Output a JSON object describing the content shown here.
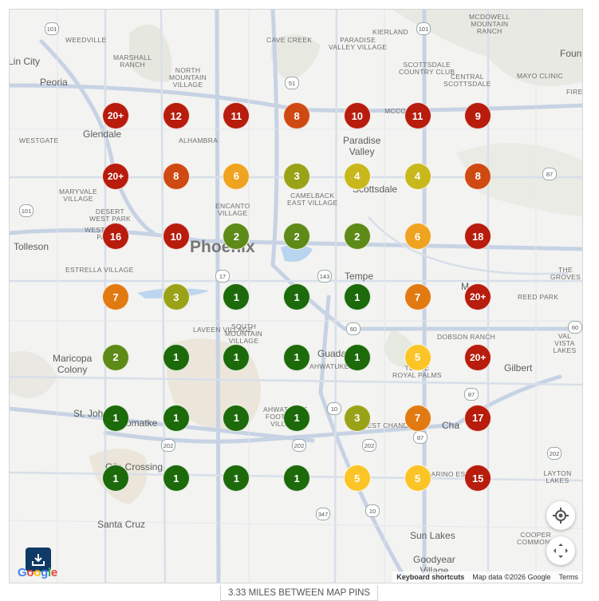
{
  "map": {
    "places": [
      "WEEDVILLE",
      "MARSHALL\nRANCH",
      "NORTH\nMOUNTAIN\nVILLAGE",
      "CAVE CREEK",
      "PARADISE\nVALLEY VILLAGE",
      "KIERLAND",
      "SCOTTSDALE\nCOUNTRY CLUB",
      "MCDOWELL\nMOUNTAIN\nRANCH",
      "CENTRAL\nSCOTTSDALE",
      "MAYO CLINIC",
      "FIRERO",
      "WESTGATE",
      "ALHAMBRA",
      "MARYVALE\nVILLAGE",
      "DESERT\nWEST PARK",
      "ENCANTO\nVILLAGE",
      "CAMELBACK\nEAST VILLAGE",
      "WESTRIDGE\nPARK",
      "ESTRELLA VILLAGE",
      "THE GROVES",
      "REED PARK",
      "LAVEEN VILLAGE",
      "SOUTH\nMOUNTAIN\nVILLAGE",
      "DOBSON RANCH",
      "VAL VISTA\nLAKES",
      "TEMPE\nROYAL PALMS",
      "AHWATUKEE",
      "AHWATUKEE\nFOOTHILLS\nVILLAGE",
      "WEST CHANDLER",
      "LAYTON LAKES",
      "COOPER\nCOMMONS",
      "MCCO",
      "SAN MARINO ESTATES"
    ],
    "cities": [
      "Lin City",
      "Peoria",
      "Glendale",
      "Paradise\nValley",
      "Scottsdale",
      "Fount",
      "Tolleson",
      "Tempe",
      "Maricopa\nColony",
      "Gilbert",
      "St. Johns",
      "Komatke",
      "Gila Crossing",
      "Cha",
      "Santa Cruz",
      "Sun Lakes",
      "Goodyear\nVillage",
      "Guada",
      "M"
    ],
    "big_city": "Phoenix",
    "route_shields": [
      "101",
      "101",
      "51",
      "17",
      "87",
      "143",
      "60",
      "60",
      "10",
      "202",
      "202",
      "202",
      "87",
      "347",
      "10",
      "87",
      "202",
      "101"
    ]
  },
  "pins": {
    "colors": {
      "red": "#b71c0c",
      "red_orange": "#cf4a12",
      "orange": "#e27a12",
      "amber": "#f0a320",
      "yellow": "#fbc528",
      "mustard": "#c9b81c",
      "olive": "#9aa218",
      "green_olive": "#5e8a18",
      "green": "#1c6a0a"
    },
    "rows": [
      [
        {
          "label": "20+",
          "color": "red"
        },
        {
          "label": "12",
          "color": "red"
        },
        {
          "label": "11",
          "color": "red"
        },
        {
          "label": "8",
          "color": "red_orange"
        },
        {
          "label": "10",
          "color": "red"
        },
        {
          "label": "11",
          "color": "red"
        },
        {
          "label": "9",
          "color": "red"
        }
      ],
      [
        {
          "label": "20+",
          "color": "red"
        },
        {
          "label": "8",
          "color": "red_orange"
        },
        {
          "label": "6",
          "color": "amber"
        },
        {
          "label": "3",
          "color": "olive"
        },
        {
          "label": "4",
          "color": "mustard"
        },
        {
          "label": "4",
          "color": "mustard"
        },
        {
          "label": "8",
          "color": "red_orange"
        }
      ],
      [
        {
          "label": "16",
          "color": "red"
        },
        {
          "label": "10",
          "color": "red"
        },
        {
          "label": "2",
          "color": "green_olive"
        },
        {
          "label": "2",
          "color": "green_olive"
        },
        {
          "label": "2",
          "color": "green_olive"
        },
        {
          "label": "6",
          "color": "amber"
        },
        {
          "label": "18",
          "color": "red"
        }
      ],
      [
        {
          "label": "7",
          "color": "orange"
        },
        {
          "label": "3",
          "color": "olive"
        },
        {
          "label": "1",
          "color": "green"
        },
        {
          "label": "1",
          "color": "green"
        },
        {
          "label": "1",
          "color": "green"
        },
        {
          "label": "7",
          "color": "orange"
        },
        {
          "label": "20+",
          "color": "red"
        }
      ],
      [
        {
          "label": "2",
          "color": "green_olive"
        },
        {
          "label": "1",
          "color": "green"
        },
        {
          "label": "1",
          "color": "green"
        },
        {
          "label": "1",
          "color": "green"
        },
        {
          "label": "1",
          "color": "green"
        },
        {
          "label": "5",
          "color": "yellow"
        },
        {
          "label": "20+",
          "color": "red"
        }
      ],
      [
        {
          "label": "1",
          "color": "green"
        },
        {
          "label": "1",
          "color": "green"
        },
        {
          "label": "1",
          "color": "green"
        },
        {
          "label": "1",
          "color": "green"
        },
        {
          "label": "3",
          "color": "olive"
        },
        {
          "label": "7",
          "color": "orange"
        },
        {
          "label": "17",
          "color": "red"
        }
      ],
      [
        {
          "label": "1",
          "color": "green"
        },
        {
          "label": "1",
          "color": "green"
        },
        {
          "label": "1",
          "color": "green"
        },
        {
          "label": "1",
          "color": "green"
        },
        {
          "label": "5",
          "color": "yellow"
        },
        {
          "label": "5",
          "color": "yellow"
        },
        {
          "label": "15",
          "color": "red"
        }
      ]
    ]
  },
  "controls": {
    "locate_icon": "crosshair-icon",
    "fullscreen_icon": "expand-arrows-icon",
    "download_icon": "download-icon"
  },
  "logo": "Google",
  "attribution": {
    "shortcuts": "Keyboard shortcuts",
    "data": "Map data ©2026 Google",
    "terms": "Terms"
  },
  "footer_text": "3.33 MILES BETWEEN MAP PINS"
}
